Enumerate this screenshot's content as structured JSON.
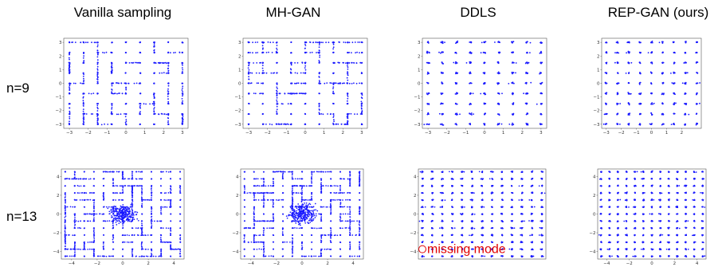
{
  "column_titles": [
    "Vanilla sampling",
    "MH-GAN",
    "DDLS",
    "REP-GAN (ours)"
  ],
  "row_labels": [
    "n=9",
    "n=13"
  ],
  "annotation": {
    "text": "missing mode",
    "color": "#e00000"
  },
  "colors": {
    "points": "#1a1aff",
    "frame": "#555555"
  },
  "chart_data": [
    {
      "type": "scatter",
      "method": "Vanilla sampling",
      "modes_per_axis": 9,
      "grid_modes": [
        -3,
        -2.25,
        -1.5,
        -0.75,
        0,
        0.75,
        1.5,
        2.25,
        3
      ],
      "xlim": [
        -3.3,
        3.3
      ],
      "ylim": [
        -3.3,
        3.3
      ],
      "xticks": [
        -3,
        -2,
        -1,
        0,
        1,
        2,
        3
      ],
      "yticks": [
        -3,
        -2,
        -1,
        0,
        1,
        2,
        3
      ],
      "style": "streaks"
    },
    {
      "type": "scatter",
      "method": "MH-GAN",
      "modes_per_axis": 9,
      "grid_modes": [
        -3,
        -2.25,
        -1.5,
        -0.75,
        0,
        0.75,
        1.5,
        2.25,
        3
      ],
      "xlim": [
        -3.3,
        3.3
      ],
      "ylim": [
        -3.3,
        3.3
      ],
      "xticks": [
        -3,
        -2,
        -1,
        0,
        1,
        2,
        3
      ],
      "yticks": [
        -3,
        -2,
        -1,
        0,
        1,
        2,
        3
      ],
      "style": "streaks"
    },
    {
      "type": "scatter",
      "method": "DDLS",
      "modes_per_axis": 9,
      "grid_modes": [
        -3,
        -2.25,
        -1.5,
        -0.75,
        0,
        0.75,
        1.5,
        2.25,
        3
      ],
      "xlim": [
        -3.3,
        3.3
      ],
      "ylim": [
        -3.3,
        3.3
      ],
      "xticks": [
        -3,
        -2,
        -1,
        0,
        1,
        2,
        3
      ],
      "yticks": [
        -3,
        -2,
        -1,
        0,
        1,
        2,
        3
      ],
      "style": "clusters"
    },
    {
      "type": "scatter",
      "method": "REP-GAN (ours)",
      "modes_per_axis": 9,
      "grid_modes": [
        -3,
        -2.25,
        -1.5,
        -0.75,
        0,
        0.75,
        1.5,
        2.25,
        3
      ],
      "xlim": [
        -3.3,
        3.3
      ],
      "ylim": [
        -3.3,
        3.3
      ],
      "xticks": [
        -3,
        -2,
        -1,
        0,
        1,
        2
      ],
      "yticks": [
        -3,
        -2,
        -1,
        0,
        1,
        2,
        3
      ],
      "style": "clusters"
    },
    {
      "type": "scatter",
      "method": "Vanilla sampling",
      "modes_per_axis": 13,
      "grid_modes": [
        -4.5,
        -3.75,
        -3,
        -2.25,
        -1.5,
        -0.75,
        0,
        0.75,
        1.5,
        2.25,
        3,
        3.75,
        4.5
      ],
      "xlim": [
        -4.8,
        4.8
      ],
      "ylim": [
        -4.8,
        4.8
      ],
      "xticks": [
        -4,
        -2,
        0,
        2,
        4
      ],
      "yticks": [
        -4,
        -2,
        0,
        2,
        4
      ],
      "style": "dense"
    },
    {
      "type": "scatter",
      "method": "MH-GAN",
      "modes_per_axis": 13,
      "grid_modes": [
        -4.5,
        -3.75,
        -3,
        -2.25,
        -1.5,
        -0.75,
        0,
        0.75,
        1.5,
        2.25,
        3,
        3.75,
        4.5
      ],
      "xlim": [
        -4.8,
        4.8
      ],
      "ylim": [
        -4.8,
        4.8
      ],
      "xticks": [
        -4,
        -2,
        0,
        2,
        4
      ],
      "yticks": [
        -4,
        -2,
        0,
        2,
        4
      ],
      "style": "dense"
    },
    {
      "type": "scatter",
      "method": "DDLS",
      "modes_per_axis": 13,
      "grid_modes": [
        -4.5,
        -3.75,
        -3,
        -2.25,
        -1.5,
        -0.75,
        0,
        0.75,
        1.5,
        2.25,
        3,
        3.75,
        4.5
      ],
      "xlim": [
        -4.8,
        4.8
      ],
      "ylim": [
        -4.8,
        4.8
      ],
      "xticks": [],
      "yticks": [
        -4,
        -2,
        0,
        2,
        4
      ],
      "style": "clusters",
      "missing_mode": [
        -4.5,
        -3.75
      ]
    },
    {
      "type": "scatter",
      "method": "REP-GAN (ours)",
      "modes_per_axis": 13,
      "grid_modes": [
        -4.5,
        -3.75,
        -3,
        -2.25,
        -1.5,
        -0.75,
        0,
        0.75,
        1.5,
        2.25,
        3,
        3.75,
        4.5
      ],
      "xlim": [
        -4.8,
        4.8
      ],
      "ylim": [
        -4.8,
        4.8
      ],
      "xticks": [
        -4,
        -2,
        0,
        2,
        4
      ],
      "yticks": [
        -4,
        -2,
        0,
        2,
        4
      ],
      "style": "clusters"
    }
  ]
}
